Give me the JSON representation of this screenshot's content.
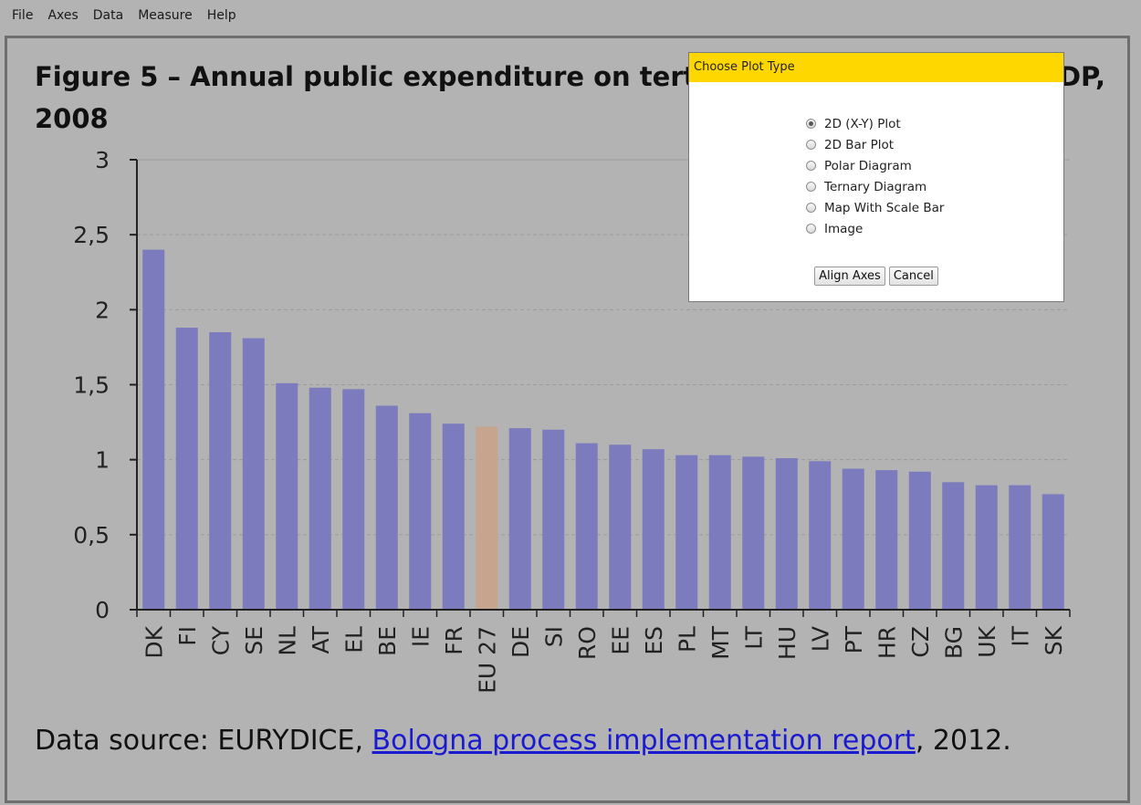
{
  "menu": [
    "File",
    "Axes",
    "Data",
    "Measure",
    "Help"
  ],
  "modal": {
    "title": "Choose Plot Type",
    "options": [
      "2D (X-Y) Plot",
      "2D Bar Plot",
      "Polar Diagram",
      "Ternary Diagram",
      "Map With Scale Bar",
      "Image"
    ],
    "selected_index": 0,
    "buttons": [
      "Align Axes",
      "Cancel"
    ]
  },
  "chart_data": {
    "type": "bar",
    "title_line1_left": "Figure 5 – Annual public expenditure on terti",
    "title_line1_right": "DP,",
    "title_line2": "2008",
    "categories": [
      "DK",
      "FI",
      "CY",
      "SE",
      "NL",
      "AT",
      "EL",
      "BE",
      "IE",
      "FR",
      "EU 27",
      "DE",
      "SI",
      "RO",
      "EE",
      "ES",
      "PL",
      "MT",
      "LT",
      "HU",
      "LV",
      "PT",
      "HR",
      "CZ",
      "BG",
      "UK",
      "IT",
      "SK"
    ],
    "values": [
      2.4,
      1.88,
      1.85,
      1.81,
      1.51,
      1.48,
      1.47,
      1.36,
      1.31,
      1.24,
      1.22,
      1.21,
      1.2,
      1.11,
      1.1,
      1.07,
      1.03,
      1.03,
      1.02,
      1.01,
      0.99,
      0.94,
      0.93,
      0.92,
      0.85,
      0.83,
      0.83,
      0.77
    ],
    "ylim": [
      0,
      3
    ],
    "yticks": [
      "0",
      "0,5",
      "1",
      "1,5",
      "2",
      "2,5",
      "3"
    ],
    "bar_color": "#7b7bbd",
    "highlight_category": "EU 27",
    "highlight_color": "#c7a48d",
    "source_prefix": "Data source: EURYDICE, ",
    "source_link": "Bologna process implementation report",
    "source_suffix": ", 2012."
  }
}
